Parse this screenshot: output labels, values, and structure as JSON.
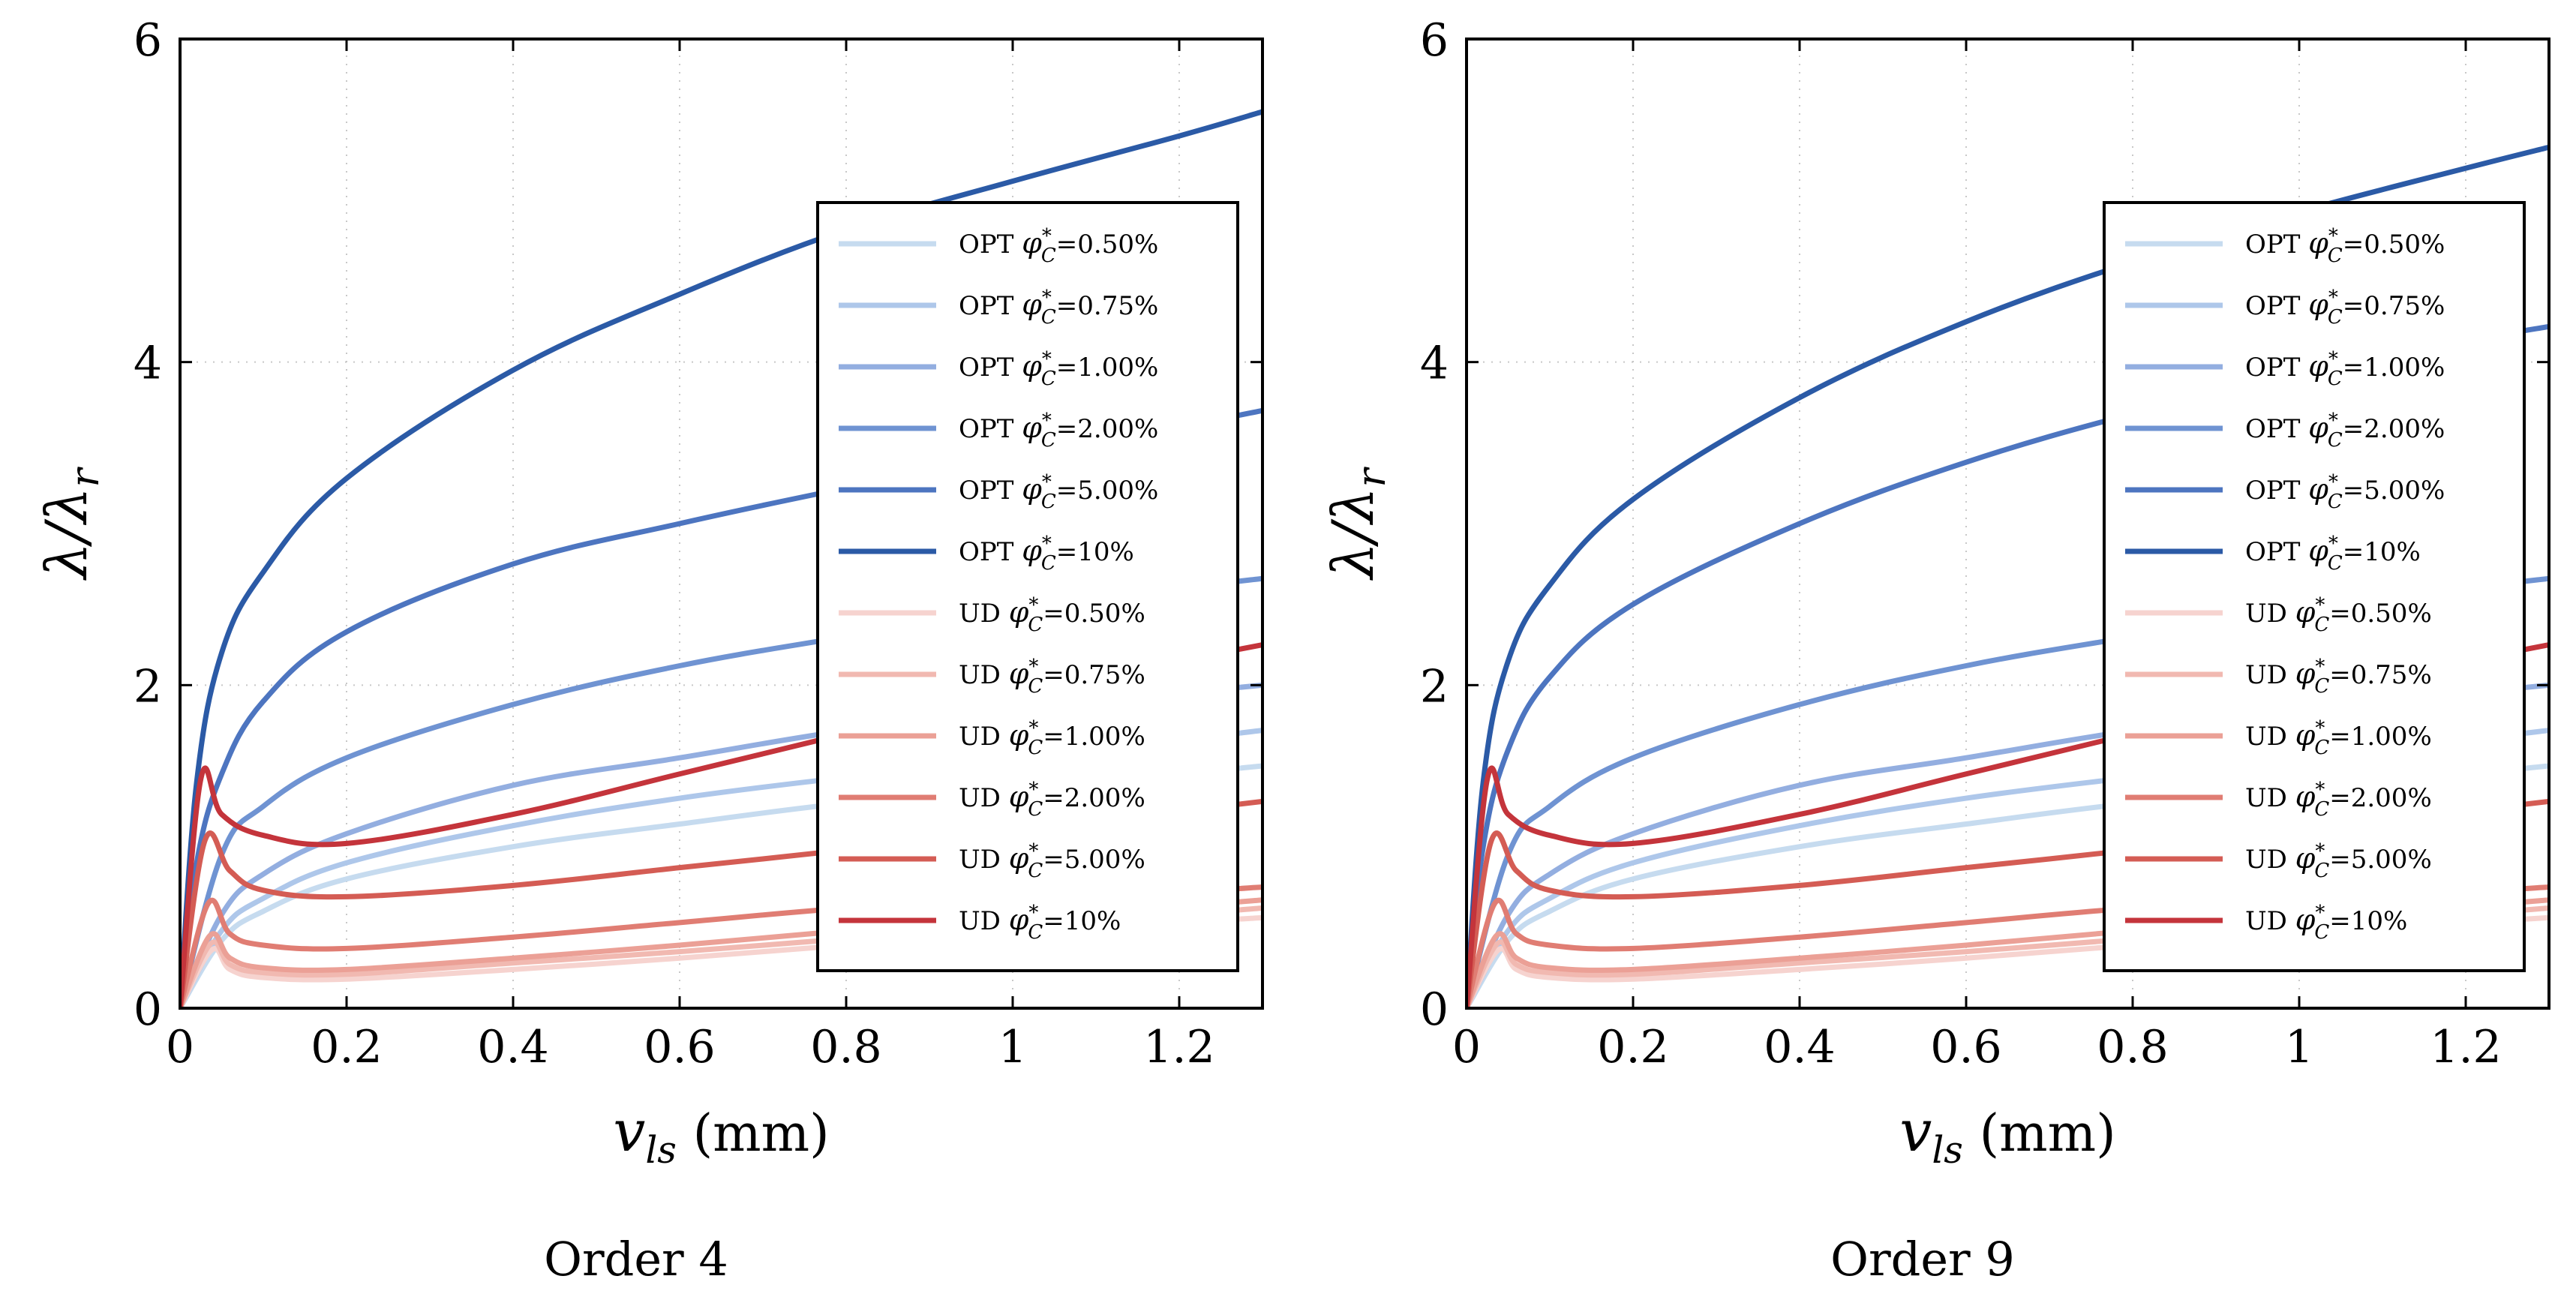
{
  "chart_data": [
    {
      "type": "line",
      "caption": "Order 4",
      "xlabel": "v_ls (mm)",
      "ylabel": "λ/λr",
      "xlim": [
        0,
        1.3
      ],
      "ylim": [
        0,
        6
      ],
      "xticks": [
        "0",
        "0.2",
        "0.4",
        "0.6",
        "0.8",
        "1",
        "1.2"
      ],
      "yticks": [
        "0",
        "2",
        "4",
        "6"
      ],
      "grid": true,
      "legend_position": "right",
      "series": [
        {
          "name": "OPT φ*C=0.50%",
          "color": "#c6dbef",
          "values": {
            "x": [
              0,
              0.05,
              0.1,
              0.2,
              0.4,
              0.6,
              0.8,
              1.0,
              1.2,
              1.3
            ],
            "y": [
              0,
              0.42,
              0.6,
              0.8,
              1.0,
              1.14,
              1.27,
              1.36,
              1.45,
              1.5
            ]
          }
        },
        {
          "name": "OPT φ*C=0.75%",
          "color": "#aec7ea",
          "values": {
            "x": [
              0,
              0.05,
              0.1,
              0.2,
              0.4,
              0.6,
              0.8,
              1.0,
              1.2,
              1.3
            ],
            "y": [
              0,
              0.48,
              0.68,
              0.9,
              1.13,
              1.3,
              1.43,
              1.55,
              1.66,
              1.72
            ]
          }
        },
        {
          "name": "OPT φ*C=1.00%",
          "color": "#93aee0",
          "values": {
            "x": [
              0,
              0.05,
              0.1,
              0.2,
              0.4,
              0.6,
              0.8,
              1.0,
              1.2,
              1.3
            ],
            "y": [
              0,
              0.58,
              0.83,
              1.08,
              1.38,
              1.55,
              1.72,
              1.85,
              1.95,
              2.0
            ]
          }
        },
        {
          "name": "OPT φ*C=2.00%",
          "color": "#6f93d2",
          "values": {
            "x": [
              0,
              0.05,
              0.1,
              0.2,
              0.4,
              0.6,
              0.8,
              1.0,
              1.2,
              1.3
            ],
            "y": [
              0,
              0.95,
              1.25,
              1.55,
              1.88,
              2.12,
              2.3,
              2.47,
              2.6,
              2.66
            ]
          }
        },
        {
          "name": "OPT φ*C=5.00%",
          "color": "#4d75c0",
          "values": {
            "x": [
              0,
              0.02,
              0.05,
              0.1,
              0.2,
              0.4,
              0.6,
              0.8,
              1.0,
              1.2,
              1.3
            ],
            "y": [
              0,
              0.9,
              1.45,
              1.9,
              2.33,
              2.75,
              3.0,
              3.22,
              3.42,
              3.6,
              3.7
            ]
          }
        },
        {
          "name": "OPT φ*C=10%",
          "color": "#2b5aa6",
          "values": {
            "x": [
              0,
              0.02,
              0.05,
              0.1,
              0.2,
              0.4,
              0.6,
              0.8,
              1.0,
              1.2,
              1.3
            ],
            "y": [
              0,
              1.4,
              2.2,
              2.7,
              3.28,
              3.95,
              4.42,
              4.82,
              5.12,
              5.4,
              5.55
            ]
          }
        },
        {
          "name": "UD φ*C=0.50%",
          "color": "#f6d3cf",
          "values": {
            "x": [
              0,
              0.038,
              0.06,
              0.1,
              0.2,
              0.4,
              0.6,
              0.8,
              1.0,
              1.2,
              1.3
            ],
            "y": [
              0,
              0.36,
              0.24,
              0.19,
              0.18,
              0.24,
              0.31,
              0.39,
              0.46,
              0.53,
              0.56
            ]
          }
        },
        {
          "name": "UD φ*C=0.75%",
          "color": "#f1b9b1",
          "values": {
            "x": [
              0,
              0.037,
              0.06,
              0.1,
              0.2,
              0.4,
              0.6,
              0.8,
              1.0,
              1.2,
              1.3
            ],
            "y": [
              0,
              0.4,
              0.27,
              0.22,
              0.21,
              0.28,
              0.35,
              0.43,
              0.51,
              0.58,
              0.62
            ]
          }
        },
        {
          "name": "UD φ*C=1.00%",
          "color": "#eba096",
          "values": {
            "x": [
              0,
              0.036,
              0.06,
              0.1,
              0.2,
              0.4,
              0.6,
              0.8,
              1.0,
              1.2,
              1.3
            ],
            "y": [
              0,
              0.45,
              0.31,
              0.25,
              0.24,
              0.31,
              0.39,
              0.48,
              0.56,
              0.63,
              0.67
            ]
          }
        },
        {
          "name": "UD φ*C=2.00%",
          "color": "#e07d73",
          "values": {
            "x": [
              0,
              0.034,
              0.06,
              0.1,
              0.2,
              0.4,
              0.6,
              0.8,
              1.0,
              1.2,
              1.3
            ],
            "y": [
              0,
              0.65,
              0.46,
              0.39,
              0.37,
              0.44,
              0.53,
              0.62,
              0.68,
              0.72,
              0.75
            ]
          }
        },
        {
          "name": "UD φ*C=5.00%",
          "color": "#d45c54",
          "values": {
            "x": [
              0,
              0.03,
              0.06,
              0.1,
              0.2,
              0.4,
              0.6,
              0.8,
              1.0,
              1.2,
              1.3
            ],
            "y": [
              0,
              1.04,
              0.85,
              0.73,
              0.69,
              0.76,
              0.87,
              0.98,
              1.1,
              1.22,
              1.28
            ]
          }
        },
        {
          "name": "UD φ*C=10%",
          "color": "#c4343b",
          "values": {
            "x": [
              0,
              0.025,
              0.05,
              0.1,
              0.2,
              0.4,
              0.6,
              0.8,
              1.0,
              1.2,
              1.3
            ],
            "y": [
              0,
              1.42,
              1.2,
              1.07,
              1.02,
              1.2,
              1.45,
              1.7,
              1.95,
              2.15,
              2.25
            ]
          }
        }
      ]
    },
    {
      "type": "line",
      "caption": "Order 9",
      "xlabel": "v_ls (mm)",
      "ylabel": "λ/λr",
      "xlim": [
        0,
        1.3
      ],
      "ylim": [
        0,
        6
      ],
      "xticks": [
        "0",
        "0.2",
        "0.4",
        "0.6",
        "0.8",
        "1",
        "1.2"
      ],
      "yticks": [
        "0",
        "2",
        "4",
        "6"
      ],
      "grid": true,
      "legend_position": "right",
      "series": [
        {
          "name": "OPT φ*C=0.50%",
          "color": "#c6dbef",
          "values": {
            "x": [
              0,
              0.05,
              0.1,
              0.2,
              0.4,
              0.6,
              0.8,
              1.0,
              1.2,
              1.3
            ],
            "y": [
              0,
              0.42,
              0.6,
              0.8,
              1.0,
              1.14,
              1.27,
              1.36,
              1.45,
              1.5
            ]
          }
        },
        {
          "name": "OPT φ*C=0.75%",
          "color": "#aec7ea",
          "values": {
            "x": [
              0,
              0.05,
              0.1,
              0.2,
              0.4,
              0.6,
              0.8,
              1.0,
              1.2,
              1.3
            ],
            "y": [
              0,
              0.48,
              0.68,
              0.9,
              1.13,
              1.3,
              1.43,
              1.55,
              1.66,
              1.72
            ]
          }
        },
        {
          "name": "OPT φ*C=1.00%",
          "color": "#93aee0",
          "values": {
            "x": [
              0,
              0.05,
              0.1,
              0.2,
              0.4,
              0.6,
              0.8,
              1.0,
              1.2,
              1.3
            ],
            "y": [
              0,
              0.58,
              0.83,
              1.08,
              1.38,
              1.55,
              1.72,
              1.85,
              1.95,
              2.0
            ]
          }
        },
        {
          "name": "OPT φ*C=2.00%",
          "color": "#6f93d2",
          "values": {
            "x": [
              0,
              0.05,
              0.1,
              0.2,
              0.4,
              0.6,
              0.8,
              1.0,
              1.2,
              1.3
            ],
            "y": [
              0,
              0.95,
              1.25,
              1.55,
              1.88,
              2.12,
              2.3,
              2.47,
              2.6,
              2.66
            ]
          }
        },
        {
          "name": "OPT φ*C=5.00%",
          "color": "#4d75c0",
          "values": {
            "x": [
              0,
              0.02,
              0.05,
              0.1,
              0.2,
              0.4,
              0.6,
              0.8,
              1.0,
              1.2,
              1.3
            ],
            "y": [
              0,
              1.0,
              1.6,
              2.05,
              2.5,
              3.0,
              3.38,
              3.68,
              3.92,
              4.13,
              4.22
            ]
          }
        },
        {
          "name": "OPT φ*C=10%",
          "color": "#2b5aa6",
          "values": {
            "x": [
              0,
              0.02,
              0.05,
              0.1,
              0.2,
              0.4,
              0.6,
              0.8,
              1.0,
              1.2,
              1.3
            ],
            "y": [
              0,
              1.4,
              2.15,
              2.62,
              3.15,
              3.78,
              4.25,
              4.62,
              4.93,
              5.2,
              5.33
            ]
          }
        },
        {
          "name": "UD φ*C=0.50%",
          "color": "#f6d3cf",
          "values": {
            "x": [
              0,
              0.038,
              0.06,
              0.1,
              0.2,
              0.4,
              0.6,
              0.8,
              1.0,
              1.2,
              1.3
            ],
            "y": [
              0,
              0.36,
              0.24,
              0.19,
              0.18,
              0.24,
              0.31,
              0.39,
              0.46,
              0.53,
              0.56
            ]
          }
        },
        {
          "name": "UD φ*C=0.75%",
          "color": "#f1b9b1",
          "values": {
            "x": [
              0,
              0.037,
              0.06,
              0.1,
              0.2,
              0.4,
              0.6,
              0.8,
              1.0,
              1.2,
              1.3
            ],
            "y": [
              0,
              0.4,
              0.27,
              0.22,
              0.21,
              0.28,
              0.35,
              0.43,
              0.51,
              0.58,
              0.62
            ]
          }
        },
        {
          "name": "UD φ*C=1.00%",
          "color": "#eba096",
          "values": {
            "x": [
              0,
              0.036,
              0.06,
              0.1,
              0.2,
              0.4,
              0.6,
              0.8,
              1.0,
              1.2,
              1.3
            ],
            "y": [
              0,
              0.45,
              0.31,
              0.25,
              0.24,
              0.31,
              0.39,
              0.48,
              0.56,
              0.63,
              0.67
            ]
          }
        },
        {
          "name": "UD φ*C=2.00%",
          "color": "#e07d73",
          "values": {
            "x": [
              0,
              0.034,
              0.06,
              0.1,
              0.2,
              0.4,
              0.6,
              0.8,
              1.0,
              1.2,
              1.3
            ],
            "y": [
              0,
              0.65,
              0.46,
              0.39,
              0.37,
              0.44,
              0.53,
              0.62,
              0.68,
              0.72,
              0.75
            ]
          }
        },
        {
          "name": "UD φ*C=5.00%",
          "color": "#d45c54",
          "values": {
            "x": [
              0,
              0.03,
              0.06,
              0.1,
              0.2,
              0.4,
              0.6,
              0.8,
              1.0,
              1.2,
              1.3
            ],
            "y": [
              0,
              1.04,
              0.85,
              0.73,
              0.69,
              0.76,
              0.87,
              0.98,
              1.1,
              1.22,
              1.28
            ]
          }
        },
        {
          "name": "UD φ*C=10%",
          "color": "#c4343b",
          "values": {
            "x": [
              0,
              0.025,
              0.05,
              0.1,
              0.2,
              0.4,
              0.6,
              0.8,
              1.0,
              1.2,
              1.3
            ],
            "y": [
              0,
              1.42,
              1.2,
              1.07,
              1.02,
              1.2,
              1.45,
              1.7,
              1.95,
              2.15,
              2.25
            ]
          }
        }
      ]
    }
  ]
}
